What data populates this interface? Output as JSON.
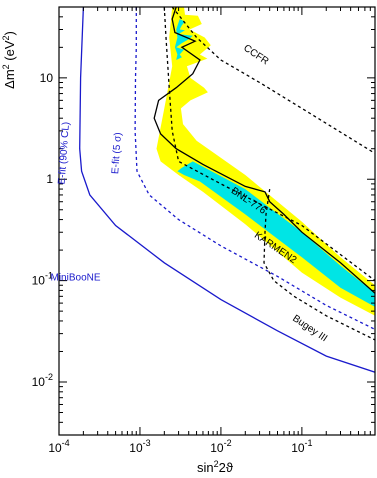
{
  "chart_data": {
    "type": "line",
    "xlabel_base": "sin",
    "xlabel_sup": "2",
    "xlabel_rest": "2ϑ",
    "ylabel_base": "Δm",
    "ylabel_sup": "2",
    "ylabel_rest": " (eV",
    "ylabel_sup2": "2",
    "ylabel_end": ")",
    "x_scale": "log",
    "y_scale": "log",
    "xlim": [
      0.0001,
      0.8
    ],
    "ylim": [
      0.003,
      50
    ],
    "x_ticks": [
      {
        "value": 0.0001,
        "base": "10",
        "exp": "-4"
      },
      {
        "value": 0.001,
        "base": "10",
        "exp": "-3"
      },
      {
        "value": 0.01,
        "base": "10",
        "exp": "-2"
      },
      {
        "value": 0.1,
        "base": "10",
        "exp": "-1"
      }
    ],
    "y_ticks": [
      {
        "value": 0.01,
        "base": "10",
        "exp": "-2"
      },
      {
        "value": 0.1,
        "base": "10",
        "exp": "-1"
      },
      {
        "value": 1,
        "text": "1"
      },
      {
        "value": 10,
        "text": "10"
      }
    ],
    "colors": {
      "lsnd_90": "#ffff00",
      "lsnd_99": "#00e5e5",
      "miniboone": "#1a1acc",
      "limits": "#000000"
    },
    "regions": [
      {
        "key": "lsnd_90",
        "color": "#ffff00",
        "polygon": [
          [
            0.0025,
            50
          ],
          [
            0.0035,
            50
          ],
          [
            0.0036,
            42
          ],
          [
            0.0052,
            41
          ],
          [
            0.0058,
            34
          ],
          [
            0.0041,
            30
          ],
          [
            0.0063,
            25
          ],
          [
            0.0075,
            21
          ],
          [
            0.0055,
            17
          ],
          [
            0.0068,
            15.5
          ],
          [
            0.0038,
            13
          ],
          [
            0.0042,
            10
          ],
          [
            0.0062,
            8
          ],
          [
            0.0069,
            7.2
          ],
          [
            0.0042,
            6
          ],
          [
            0.0032,
            5
          ],
          [
            0.0034,
            3.5
          ],
          [
            0.005,
            2.4
          ],
          [
            0.02,
            1.1
          ],
          [
            0.1,
            0.38
          ],
          [
            0.3,
            0.17
          ],
          [
            0.8,
            0.09
          ],
          [
            0.8,
            0.045
          ],
          [
            0.3,
            0.068
          ],
          [
            0.1,
            0.12
          ],
          [
            0.02,
            0.36
          ],
          [
            0.006,
            0.75
          ],
          [
            0.003,
            1.1
          ],
          [
            0.0018,
            1.5
          ],
          [
            0.0016,
            2.0
          ],
          [
            0.002,
            5
          ],
          [
            0.0025,
            13
          ],
          [
            0.0023,
            25
          ]
        ]
      },
      {
        "key": "lsnd_99",
        "color": "#00e5e5",
        "polygon": [
          [
            0.0031,
            38
          ],
          [
            0.0036,
            36
          ],
          [
            0.0033,
            33
          ],
          [
            0.0031,
            30
          ],
          [
            0.0036,
            29.5
          ],
          [
            0.003,
            27
          ],
          [
            0.0045,
            26
          ],
          [
            0.004,
            24
          ],
          [
            0.0033,
            22
          ],
          [
            0.0028,
            20
          ],
          [
            0.0035,
            19
          ],
          [
            0.0031,
            17
          ],
          [
            0.0033,
            16
          ],
          [
            0.0028,
            15
          ],
          [
            0.0029,
            17
          ],
          [
            0.0027,
            20
          ],
          [
            0.0029,
            25
          ],
          [
            0.0028,
            30
          ]
        ]
      },
      {
        "key": "lsnd_99_band",
        "color": "#00e5e5",
        "polygon": [
          [
            0.0033,
            1.3
          ],
          [
            0.0045,
            1.5
          ],
          [
            0.02,
            0.8
          ],
          [
            0.1,
            0.3
          ],
          [
            0.3,
            0.14
          ],
          [
            0.8,
            0.075
          ],
          [
            0.8,
            0.055
          ],
          [
            0.3,
            0.085
          ],
          [
            0.1,
            0.17
          ],
          [
            0.02,
            0.45
          ],
          [
            0.0055,
            0.95
          ],
          [
            0.0035,
            1.1
          ],
          [
            0.0029,
            1.2
          ]
        ]
      }
    ],
    "series": [
      {
        "key": "miniboone_90",
        "color": "#1a1acc",
        "dash": "solid",
        "points": [
          [
            0.0002,
            50
          ],
          [
            0.000195,
            30
          ],
          [
            0.000185,
            10
          ],
          [
            0.00018,
            2.0
          ],
          [
            0.00019,
            1.2
          ],
          [
            0.00024,
            0.7
          ],
          [
            0.0005,
            0.35
          ],
          [
            0.002,
            0.15
          ],
          [
            0.01,
            0.065
          ],
          [
            0.05,
            0.032
          ],
          [
            0.2,
            0.018
          ],
          [
            0.8,
            0.0125
          ]
        ]
      },
      {
        "key": "miniboone_5s",
        "color": "#1a1acc",
        "dash": "3,3",
        "points": [
          [
            0.0009,
            50
          ],
          [
            0.0009,
            20
          ],
          [
            0.00088,
            10
          ],
          [
            0.00087,
            3.0
          ],
          [
            0.00092,
            1.2
          ],
          [
            0.0013,
            0.7
          ],
          [
            0.003,
            0.4
          ],
          [
            0.01,
            0.22
          ],
          [
            0.05,
            0.11
          ],
          [
            0.2,
            0.057
          ],
          [
            0.8,
            0.033
          ]
        ]
      },
      {
        "key": "bnl_776",
        "color": "#000000",
        "dash": "3,3",
        "points": [
          [
            0.002,
            50
          ],
          [
            0.0021,
            25
          ],
          [
            0.0023,
            8
          ],
          [
            0.0025,
            3
          ],
          [
            0.003,
            1.5
          ],
          [
            0.01,
            0.9
          ],
          [
            0.1,
            0.35
          ],
          [
            0.8,
            0.1
          ]
        ]
      },
      {
        "key": "karmen2",
        "color": "#000000",
        "dash": "solid",
        "points": [
          [
            0.0028,
            50
          ],
          [
            0.0025,
            38
          ],
          [
            0.0027,
            28
          ],
          [
            0.0048,
            23
          ],
          [
            0.0033,
            20
          ],
          [
            0.0055,
            15
          ],
          [
            0.0045,
            11
          ],
          [
            0.0028,
            8
          ],
          [
            0.0017,
            6
          ],
          [
            0.0015,
            4
          ],
          [
            0.0018,
            2.8
          ],
          [
            0.0028,
            2.0
          ],
          [
            0.006,
            1.4
          ],
          [
            0.02,
            0.85
          ],
          [
            0.035,
            0.75
          ],
          [
            0.04,
            0.6
          ],
          [
            0.06,
            0.45
          ],
          [
            0.1,
            0.3
          ],
          [
            0.3,
            0.15
          ],
          [
            0.8,
            0.075
          ]
        ]
      },
      {
        "key": "bugey_3",
        "color": "#000000",
        "dash": "3,3",
        "points": [
          [
            0.04,
            0.8
          ],
          [
            0.036,
            0.45
          ],
          [
            0.035,
            0.3
          ],
          [
            0.034,
            0.15
          ],
          [
            0.045,
            0.1
          ],
          [
            0.08,
            0.07
          ],
          [
            0.2,
            0.045
          ],
          [
            0.8,
            0.026
          ]
        ]
      },
      {
        "key": "ccfr",
        "color": "#000000",
        "dash": "3,3",
        "points": [
          [
            0.0025,
            50
          ],
          [
            0.005,
            25
          ],
          [
            0.01,
            15
          ],
          [
            0.03,
            9
          ],
          [
            0.1,
            5
          ],
          [
            0.8,
            1.8
          ]
        ]
      }
    ],
    "annotations": [
      {
        "key": "ccfr_label",
        "text": "CCFR",
        "x": 0.026,
        "y": 16,
        "rotate": 34,
        "color": "#000000",
        "size": 10
      },
      {
        "key": "bnl_label",
        "text": "BNL-776",
        "x": 0.021,
        "y": 0.58,
        "rotate": 34,
        "color": "#000000",
        "size": 10
      },
      {
        "key": "karmen_label",
        "text": "KARMEN2",
        "x": 0.045,
        "y": 0.2,
        "rotate": 34,
        "color": "#000000",
        "size": 10
      },
      {
        "key": "bugey_label",
        "text": "Bugey III",
        "x": 0.12,
        "y": 0.032,
        "rotate": 34,
        "color": "#000000",
        "size": 10
      },
      {
        "key": "efit_90_label",
        "text": "E-fit (90% CL)",
        "x": 0.000125,
        "y": 1.8,
        "rotate": -86,
        "color": "#1a1acc",
        "size": 10
      },
      {
        "key": "efit_5s_label",
        "text": "E-fit (5 σ)",
        "x": 0.00056,
        "y": 1.8,
        "rotate": -86,
        "color": "#1a1acc",
        "size": 10
      },
      {
        "key": "miniboone_label",
        "text": "MiniBooNE",
        "x": 0.00016,
        "y": 0.1,
        "rotate": 0,
        "color": "#1a1acc",
        "size": 17
      }
    ]
  }
}
